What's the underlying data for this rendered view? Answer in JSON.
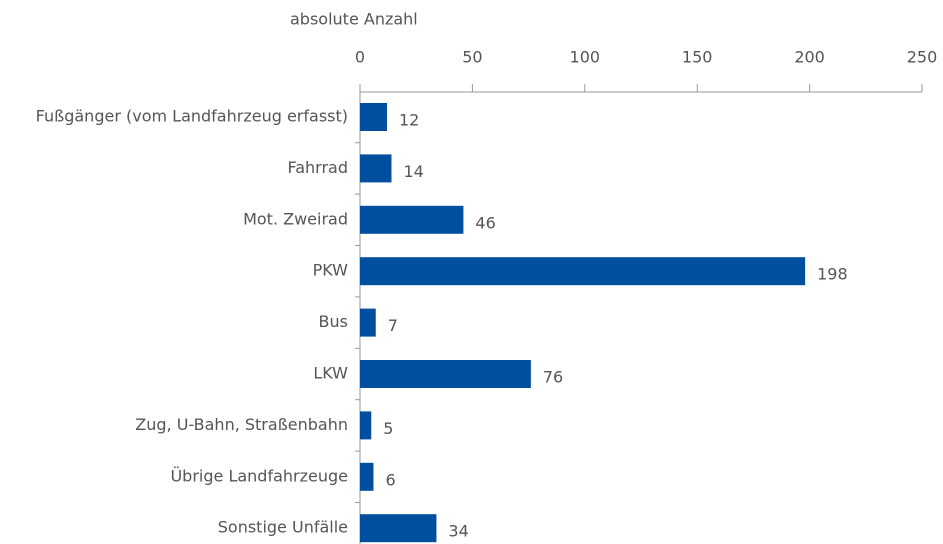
{
  "chart_data": {
    "type": "bar",
    "orientation": "horizontal",
    "x_label": "absolute Anzahl",
    "categories": [
      "Fußgänger (vom Landfahrzeug erfasst)",
      "Fahrrad",
      "Mot. Zweirad",
      "PKW",
      "Bus",
      "LKW",
      "Zug, U-Bahn, Straßenbahn",
      "Übrige Landfahrzeuge",
      "Sonstige Unfälle"
    ],
    "values": [
      12,
      14,
      46,
      198,
      7,
      76,
      5,
      6,
      34
    ],
    "color": "#004f9f",
    "xlim": [
      0,
      250
    ],
    "xticks": [
      0,
      50,
      100,
      150,
      200,
      250
    ],
    "grid": false
  }
}
